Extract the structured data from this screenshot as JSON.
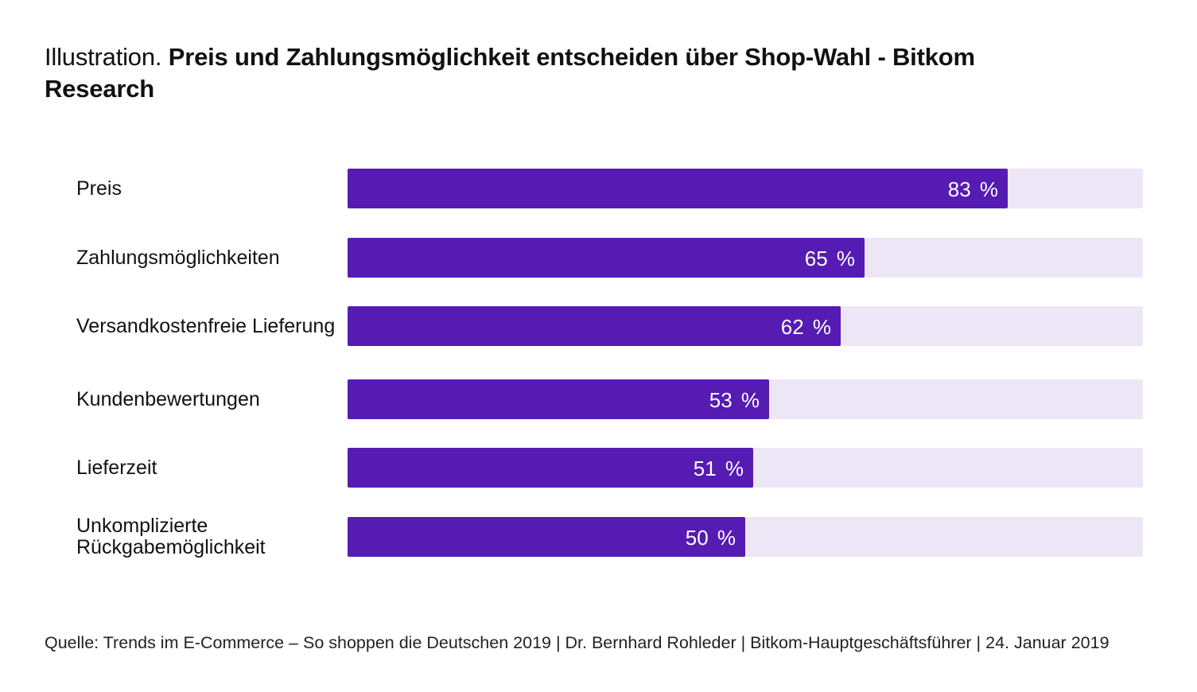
{
  "title_prefix": "Illustration.",
  "title_bold": "Preis und Zahlungsmöglichkeit entscheiden über Shop-Wahl - Bitkom Research",
  "source": "Quelle: Trends im E-Commerce – So shoppen die Deutschen 2019 | Dr. Bernhard Rohleder | Bitkom-Hauptgeschäftsführer | 24. Januar 2019",
  "colors": {
    "bar": "#561bb3",
    "track": "#ede6f6"
  },
  "chart_data": {
    "type": "bar",
    "orientation": "horizontal",
    "categories": [
      "Preis",
      "Zahlungsmöglichkeiten",
      "Versandkostenfreie Lieferung",
      "Kundenbewertungen",
      "Lieferzeit",
      "Unkomplizierte Rückgabemöglichkeit"
    ],
    "values": [
      83,
      65,
      62,
      53,
      51,
      50
    ],
    "value_labels": [
      "83 %",
      "65 %",
      "62 %",
      "53 %",
      "51 %",
      "50 %"
    ],
    "xlim": [
      0,
      100
    ],
    "grid": false
  }
}
